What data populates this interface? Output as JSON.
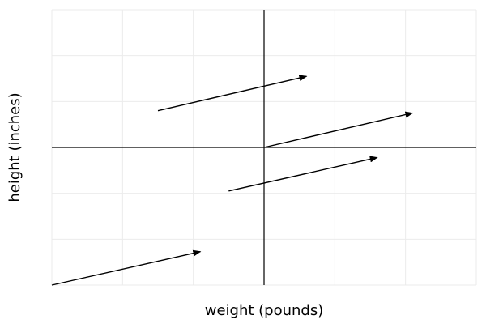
{
  "chart_data": {
    "type": "vector-field",
    "xlabel": "weight (pounds)",
    "ylabel": "height (inches)",
    "xlim": [
      -3,
      3
    ],
    "ylim": [
      -3,
      3
    ],
    "grid": true,
    "vectors": [
      {
        "x0": -1.5,
        "y0": 0.8,
        "x1": 0.6,
        "y1": 1.55
      },
      {
        "x0": 0,
        "y0": 0,
        "x1": 2.1,
        "y1": 0.75
      },
      {
        "x0": -0.5,
        "y0": -0.95,
        "x1": 1.6,
        "y1": -0.22
      },
      {
        "x0": -3,
        "y0": -3,
        "x1": -0.9,
        "y1": -2.27
      }
    ]
  }
}
